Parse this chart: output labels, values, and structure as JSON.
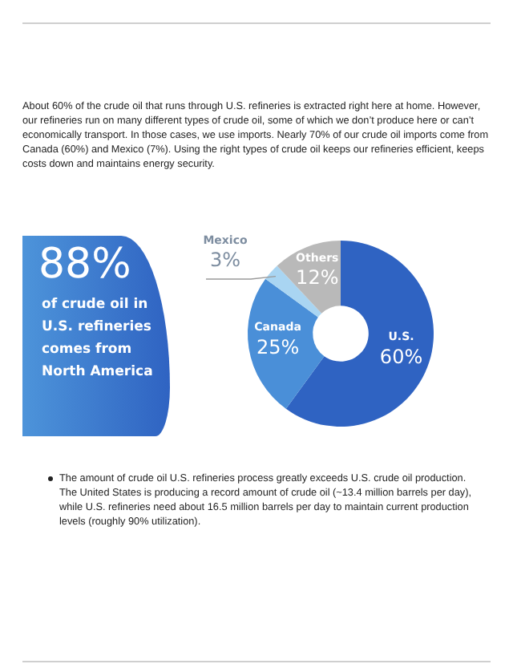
{
  "chart_data": {
    "type": "donut",
    "categories": [
      "U.S.",
      "Canada",
      "Mexico",
      "Others"
    ],
    "values": [
      60,
      25,
      3,
      12
    ],
    "colors": [
      "#2f63c2",
      "#4a8fd8",
      "#a9d5f2",
      "#b9b9b9"
    ],
    "value_labels": [
      "60%",
      "25%",
      "3%",
      "12%"
    ],
    "annotations": [
      "About 60% of the crude oil that runs through U.S. refineries is extracted right here at home. However, our refineries run on many different types of crude oil, some of which we don’t produce here or can’t economically transport. In those cases, we use imports. Nearly 70% of our crude oil imports come from Canada (60%) and Mexico (7%). Using the right types of crude oil keeps our refineries efficient, keeps costs down and maintains energy security.",
      "88%",
      "of crude oil in U.S. refineries comes from North America",
      "The amount of crude oil U.S. refineries process greatly exceeds U.S. crude oil production. The United States is producing a record amount of crude oil (~13.4 million barrels per day), while U.S. refineries need about 16.5 million barrels per day to maintain current production levels (roughly 90% utilization)."
    ]
  }
}
